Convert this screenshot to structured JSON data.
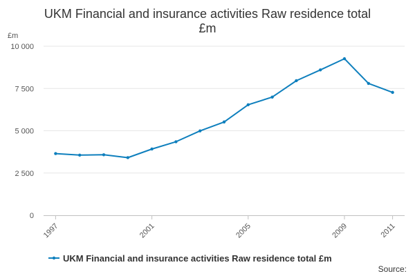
{
  "chart_data": {
    "type": "line",
    "title_lines": [
      "UKM Financial and insurance activities Raw residence total",
      "£m"
    ],
    "ylabel": "£m",
    "xlabel": "",
    "ylim": [
      0,
      10000
    ],
    "y_ticks": [
      0,
      2500,
      5000,
      7500,
      10000
    ],
    "y_tick_labels": [
      "0",
      "2 500",
      "5 000",
      "7 500",
      "10 000"
    ],
    "x_ticks": [
      1997,
      2001,
      2005,
      2009,
      2011
    ],
    "x_tick_labels": [
      "1997",
      "2001",
      "2005",
      "2009",
      "2011"
    ],
    "x": [
      1997,
      1998,
      1999,
      2000,
      2001,
      2002,
      2003,
      2004,
      2005,
      2006,
      2007,
      2008,
      2009,
      2010,
      2011
    ],
    "series": [
      {
        "name": "UKM Financial and insurance activities Raw residence total £m",
        "color": "#0e7fbd",
        "values": [
          3650,
          3560,
          3580,
          3410,
          3920,
          4350,
          4990,
          5520,
          6540,
          6990,
          7960,
          8600,
          9260,
          7800,
          7270
        ]
      }
    ],
    "legend_position": "bottom-left",
    "grid": true
  },
  "footer": {
    "source_label": "Source:"
  }
}
